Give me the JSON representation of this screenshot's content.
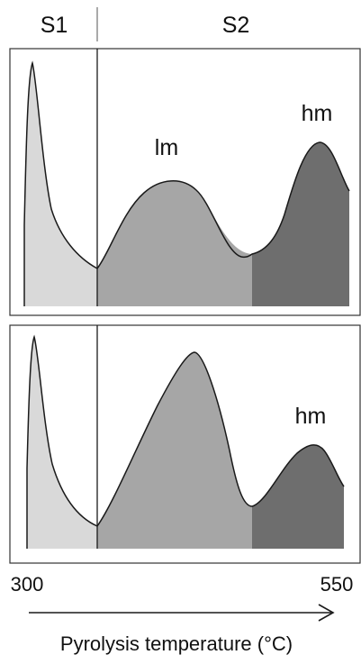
{
  "figure": {
    "column_labels": {
      "s1": "S1",
      "s2": "S2"
    },
    "top_panel": {
      "peak_labels": {
        "lm": "lm",
        "hm": "hm"
      }
    },
    "bottom_panel": {
      "peak_labels": {
        "hm": "hm"
      }
    },
    "axis": {
      "start_label": "300",
      "end_label": "550",
      "title": "Pyrolysis temperature (°C)"
    },
    "colors": {
      "s1_fill": "#d9d9d9",
      "lm_fill": "#a6a6a6",
      "hm_fill": "#6e6e6e",
      "outline": "#1a1a1a"
    }
  }
}
